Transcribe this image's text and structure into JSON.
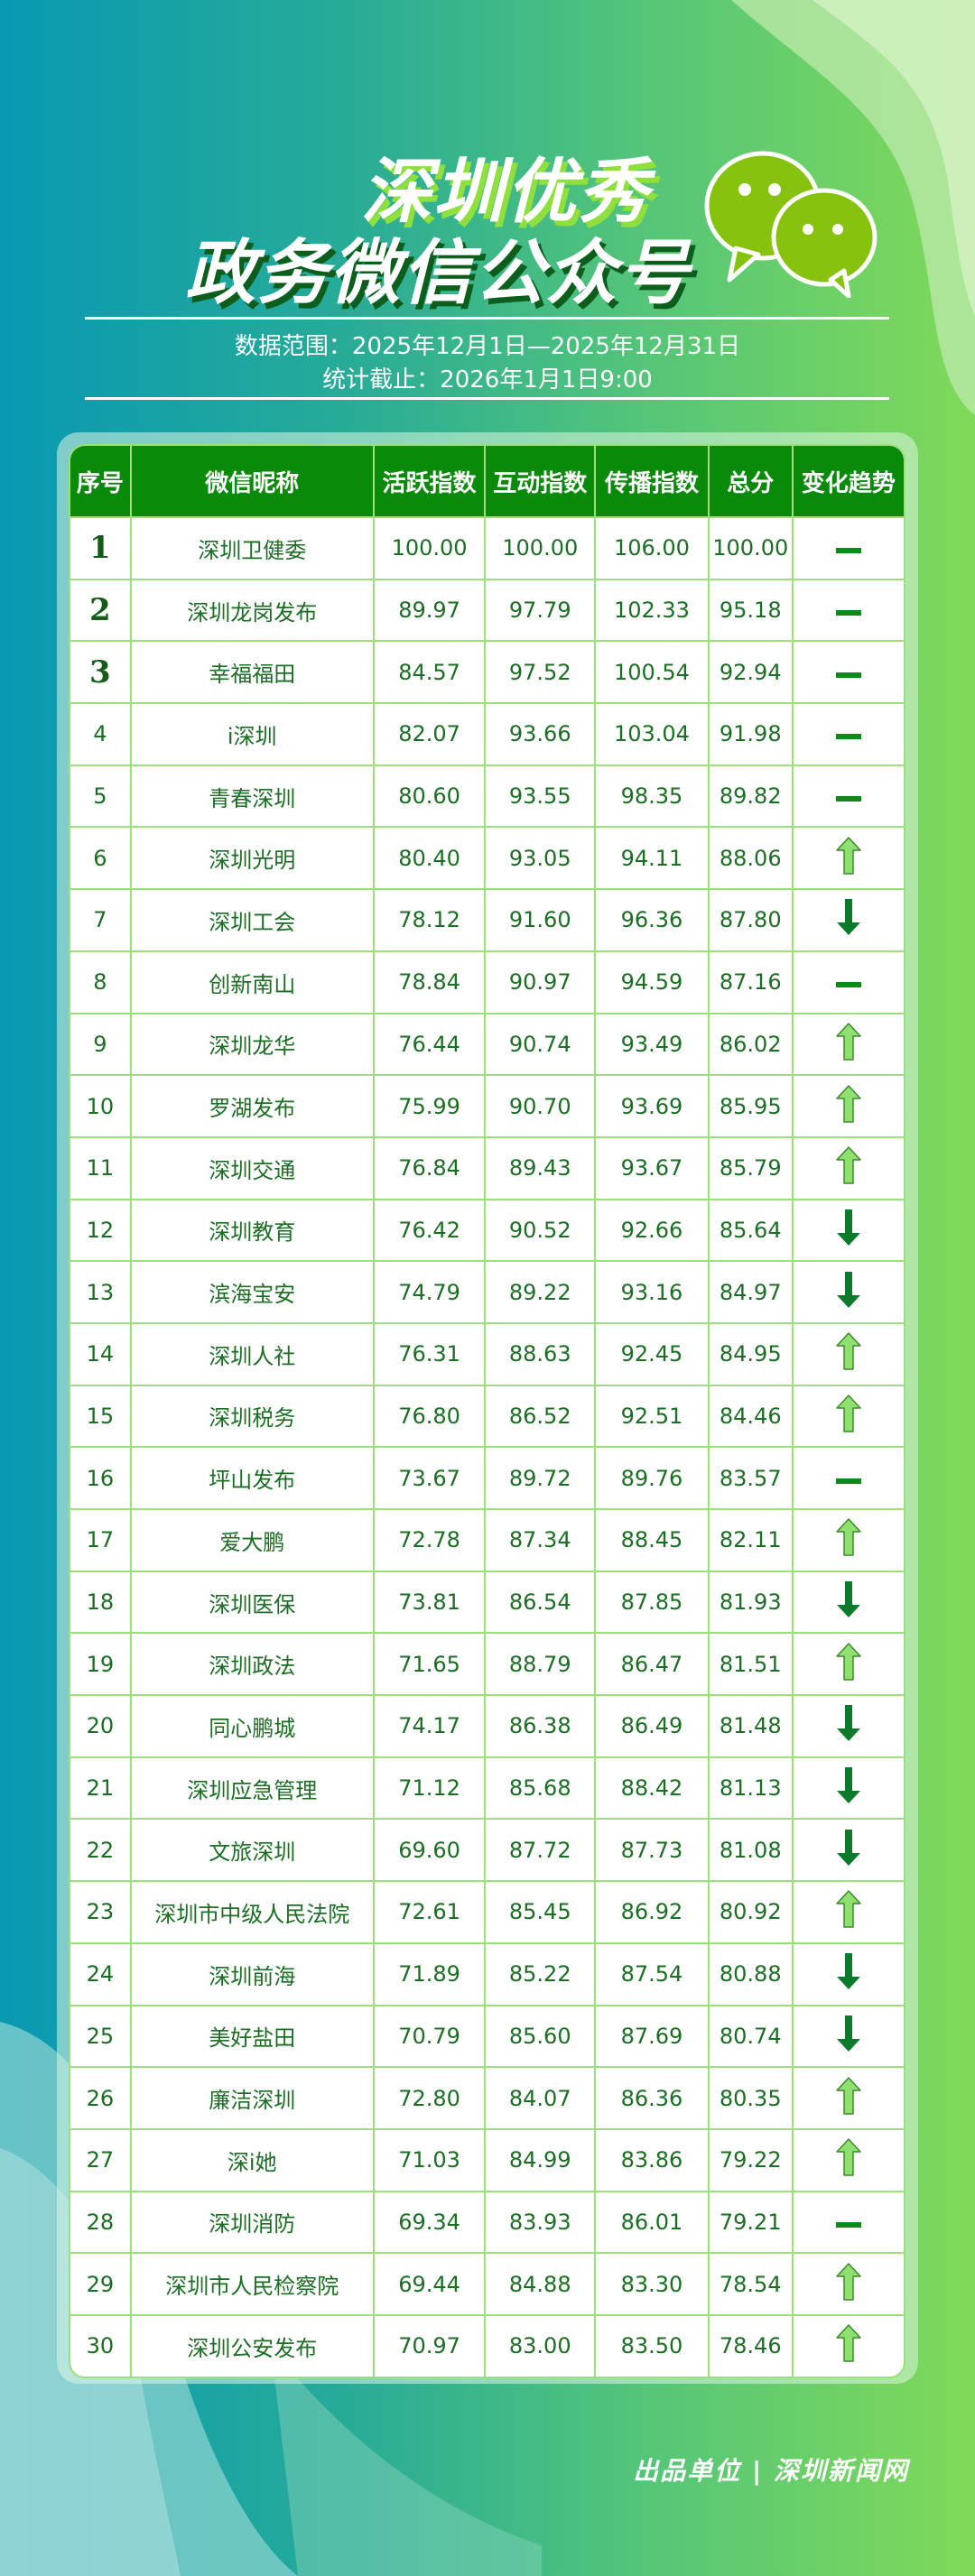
{
  "header": {
    "title_line1": "深圳优秀",
    "title_line2": "政务微信公众号",
    "data_range": "数据范围：2025年12月1日—2025年12月31日",
    "cutoff": "统计截止：2026年1月1日9:00"
  },
  "colors": {
    "header_bg": "#0a8a0a",
    "border": "#9be07a",
    "text": "#1b6e23",
    "up": "#8fe070",
    "down": "#0b7a2a",
    "flat": "#0b8a1a"
  },
  "table": {
    "columns": [
      "序号",
      "微信昵称",
      "活跃指数",
      "互动指数",
      "传播指数",
      "总分",
      "变化趋势"
    ],
    "rows": [
      [
        "1",
        "深圳卫健委",
        "100.00",
        "100.00",
        "106.00",
        "100.00",
        "flat"
      ],
      [
        "2",
        "深圳龙岗发布",
        "89.97",
        "97.79",
        "102.33",
        "95.18",
        "flat"
      ],
      [
        "3",
        "幸福福田",
        "84.57",
        "97.52",
        "100.54",
        "92.94",
        "flat"
      ],
      [
        "4",
        "i深圳",
        "82.07",
        "93.66",
        "103.04",
        "91.98",
        "flat"
      ],
      [
        "5",
        "青春深圳",
        "80.60",
        "93.55",
        "98.35",
        "89.82",
        "flat"
      ],
      [
        "6",
        "深圳光明",
        "80.40",
        "93.05",
        "94.11",
        "88.06",
        "up"
      ],
      [
        "7",
        "深圳工会",
        "78.12",
        "91.60",
        "96.36",
        "87.80",
        "down"
      ],
      [
        "8",
        "创新南山",
        "78.84",
        "90.97",
        "94.59",
        "87.16",
        "flat"
      ],
      [
        "9",
        "深圳龙华",
        "76.44",
        "90.74",
        "93.49",
        "86.02",
        "up"
      ],
      [
        "10",
        "罗湖发布",
        "75.99",
        "90.70",
        "93.69",
        "85.95",
        "up"
      ],
      [
        "11",
        "深圳交通",
        "76.84",
        "89.43",
        "93.67",
        "85.79",
        "up"
      ],
      [
        "12",
        "深圳教育",
        "76.42",
        "90.52",
        "92.66",
        "85.64",
        "down"
      ],
      [
        "13",
        "滨海宝安",
        "74.79",
        "89.22",
        "93.16",
        "84.97",
        "down"
      ],
      [
        "14",
        "深圳人社",
        "76.31",
        "88.63",
        "92.45",
        "84.95",
        "up"
      ],
      [
        "15",
        "深圳税务",
        "76.80",
        "86.52",
        "92.51",
        "84.46",
        "up"
      ],
      [
        "16",
        "坪山发布",
        "73.67",
        "89.72",
        "89.76",
        "83.57",
        "flat"
      ],
      [
        "17",
        "爱大鹏",
        "72.78",
        "87.34",
        "88.45",
        "82.11",
        "up"
      ],
      [
        "18",
        "深圳医保",
        "73.81",
        "86.54",
        "87.85",
        "81.93",
        "down"
      ],
      [
        "19",
        "深圳政法",
        "71.65",
        "88.79",
        "86.47",
        "81.51",
        "up"
      ],
      [
        "20",
        "同心鹏城",
        "74.17",
        "86.38",
        "86.49",
        "81.48",
        "down"
      ],
      [
        "21",
        "深圳应急管理",
        "71.12",
        "85.68",
        "88.42",
        "81.13",
        "down"
      ],
      [
        "22",
        "文旅深圳",
        "69.60",
        "87.72",
        "87.73",
        "81.08",
        "down"
      ],
      [
        "23",
        "深圳市中级人民法院",
        "72.61",
        "85.45",
        "86.92",
        "80.92",
        "up"
      ],
      [
        "24",
        "深圳前海",
        "71.89",
        "85.22",
        "87.54",
        "80.88",
        "down"
      ],
      [
        "25",
        "美好盐田",
        "70.79",
        "85.60",
        "87.69",
        "80.74",
        "down"
      ],
      [
        "26",
        "廉洁深圳",
        "72.80",
        "84.07",
        "86.36",
        "80.35",
        "up"
      ],
      [
        "27",
        "深i她",
        "71.03",
        "84.99",
        "83.86",
        "79.22",
        "up"
      ],
      [
        "28",
        "深圳消防",
        "69.34",
        "83.93",
        "86.01",
        "79.21",
        "flat"
      ],
      [
        "29",
        "深圳市人民检察院",
        "69.44",
        "84.88",
        "83.30",
        "78.54",
        "up"
      ],
      [
        "30",
        "深圳公安发布",
        "70.97",
        "83.00",
        "83.50",
        "78.46",
        "up"
      ]
    ]
  },
  "footer": {
    "credit": "出品单位 | 深圳新闻网"
  }
}
